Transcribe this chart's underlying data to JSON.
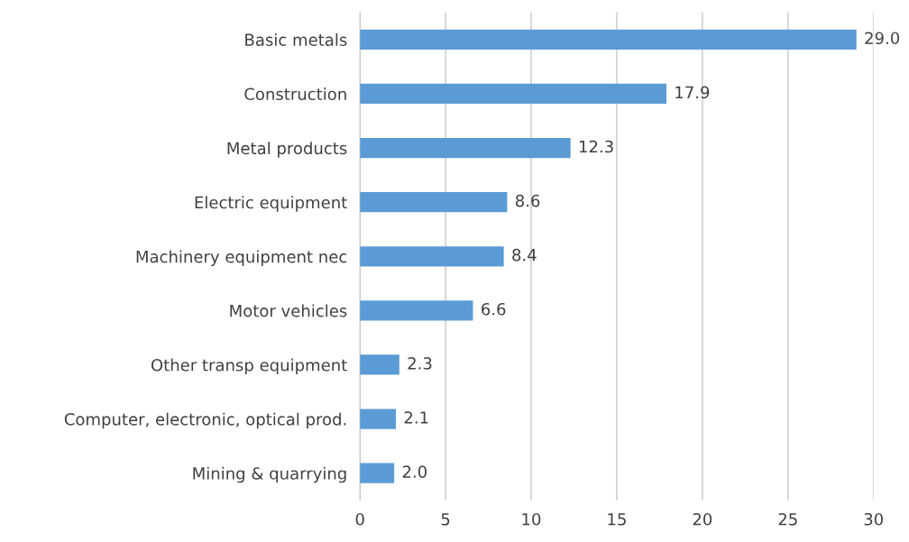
{
  "chart_data": {
    "type": "bar",
    "orientation": "horizontal",
    "categories": [
      "Basic metals",
      "Construction",
      "Metal products",
      "Electric equipment",
      "Machinery equipment nec",
      "Motor vehicles",
      "Other transp equipment",
      "Computer, electronic, optical prod.",
      "Mining & quarrying"
    ],
    "values": [
      29.0,
      17.9,
      12.3,
      8.6,
      8.4,
      6.6,
      2.3,
      2.1,
      2.0
    ],
    "value_labels": [
      "29.0",
      "17.9",
      "12.3",
      "8.6",
      "8.4",
      "6.6",
      "2.3",
      "2.1",
      "2.0"
    ],
    "color": "#5b9bd5",
    "xlim": [
      0,
      30
    ],
    "xticks": [
      0,
      5,
      10,
      15,
      20,
      25,
      30
    ],
    "grid": "x"
  }
}
